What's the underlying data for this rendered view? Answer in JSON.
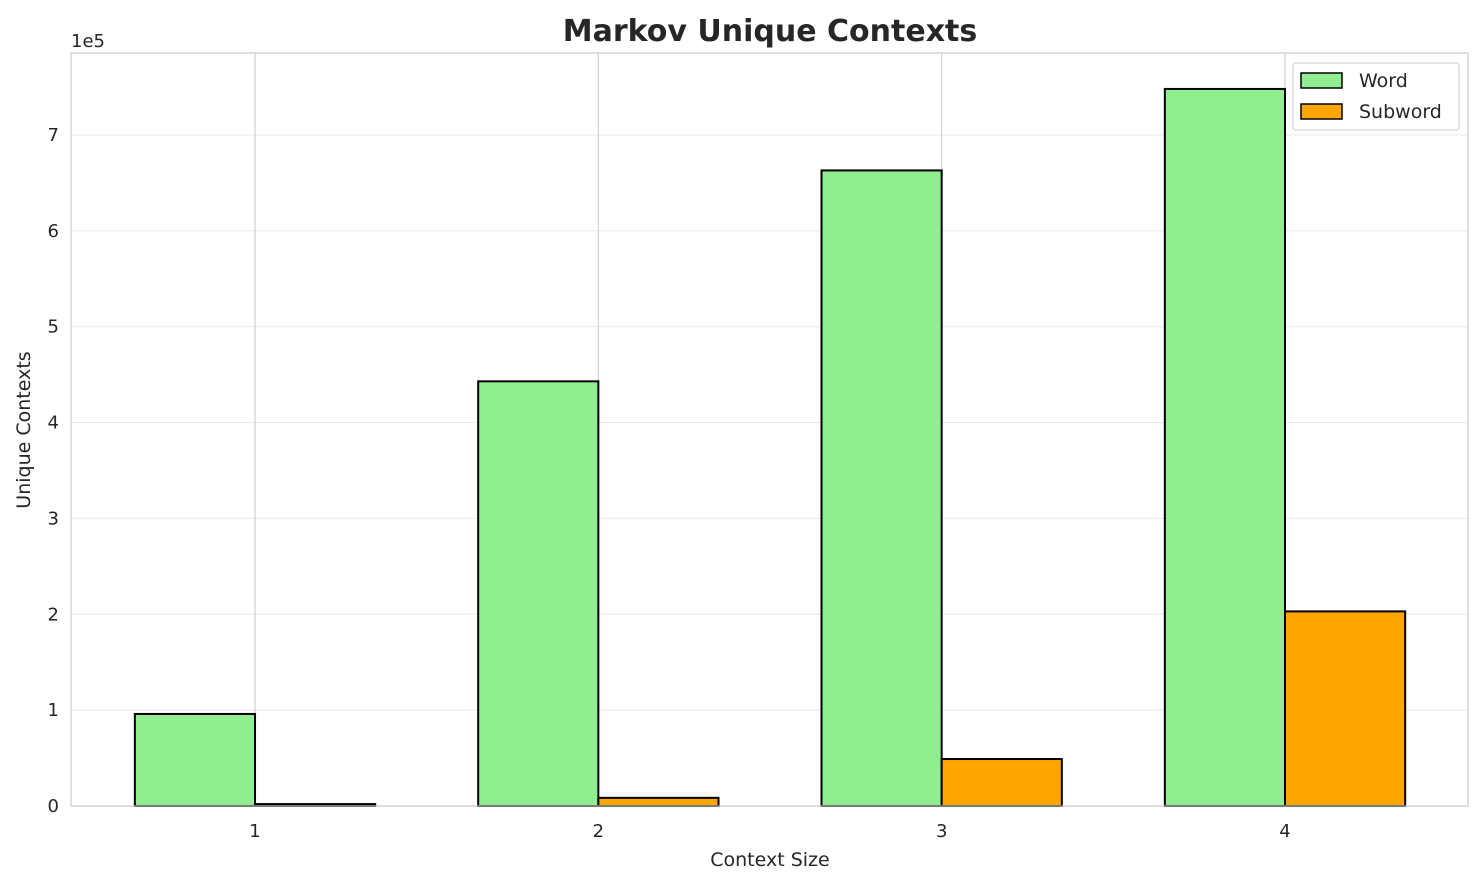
{
  "chart_data": {
    "type": "bar",
    "title": "Markov Unique Contexts",
    "xlabel": "Context Size",
    "ylabel": "Unique Contexts",
    "y_offset_label": "1e5",
    "categories": [
      "1",
      "2",
      "3",
      "4"
    ],
    "series": [
      {
        "name": "Word",
        "color": "#90ee90",
        "values": [
          96000,
          443000,
          663000,
          748000
        ]
      },
      {
        "name": "Subword",
        "color": "#ffa500",
        "values": [
          2000,
          8500,
          49000,
          203000
        ]
      }
    ],
    "yticks": [
      0,
      100000,
      200000,
      300000,
      400000,
      500000,
      600000,
      700000
    ],
    "ytick_labels": [
      "0",
      "1",
      "2",
      "3",
      "4",
      "5",
      "6",
      "7"
    ],
    "ylim": [
      0,
      785500
    ],
    "xlim": [
      0.464,
      4.533
    ],
    "bar_width": 0.35,
    "grid": true,
    "legend_position": "top-right",
    "edge_color": "#000000"
  }
}
